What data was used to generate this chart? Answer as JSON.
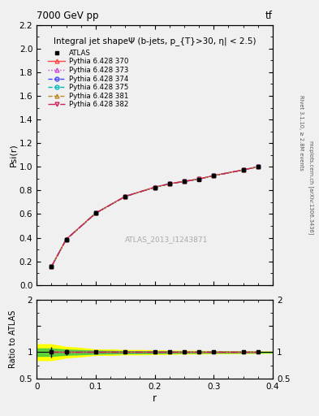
{
  "title_top": "7000 GeV pp",
  "title_top_right": "tf",
  "right_label1": "Rivet 3.1.10, ≥ 2.8M events",
  "right_label2": "mcplots.cern.ch [arXiv:1306.3436]",
  "plot_title": "Integral jet shapeΨ (b-jets, p_{T}>30, η| < 2.5)",
  "watermark": "ATLAS_2013_I1243871",
  "ylabel_main": "Psi(r)",
  "ylabel_ratio": "Ratio to ATLAS",
  "xlabel": "r",
  "xlim": [
    0.0,
    0.4
  ],
  "ylim_main": [
    0.0,
    2.2
  ],
  "ylim_ratio": [
    0.5,
    2.0
  ],
  "r_values": [
    0.025,
    0.05,
    0.1,
    0.15,
    0.2,
    0.225,
    0.25,
    0.275,
    0.3,
    0.35,
    0.375
  ],
  "atlas_data": [
    0.155,
    0.385,
    0.607,
    0.748,
    0.825,
    0.855,
    0.876,
    0.895,
    0.924,
    0.973,
    1.0
  ],
  "atlas_errors": [
    0.015,
    0.018,
    0.013,
    0.013,
    0.009,
    0.009,
    0.008,
    0.008,
    0.008,
    0.005,
    0.003
  ],
  "pythia_370": [
    0.156,
    0.387,
    0.609,
    0.75,
    0.828,
    0.857,
    0.877,
    0.897,
    0.926,
    0.974,
    1.001
  ],
  "pythia_373": [
    0.155,
    0.385,
    0.607,
    0.749,
    0.826,
    0.856,
    0.876,
    0.896,
    0.925,
    0.973,
    1.0
  ],
  "pythia_374": [
    0.155,
    0.385,
    0.607,
    0.749,
    0.826,
    0.856,
    0.876,
    0.896,
    0.925,
    0.973,
    1.0
  ],
  "pythia_375": [
    0.155,
    0.385,
    0.607,
    0.749,
    0.826,
    0.856,
    0.876,
    0.896,
    0.925,
    0.973,
    1.0
  ],
  "pythia_381": [
    0.155,
    0.385,
    0.607,
    0.749,
    0.826,
    0.856,
    0.876,
    0.896,
    0.925,
    0.973,
    1.0
  ],
  "pythia_382": [
    0.155,
    0.385,
    0.607,
    0.749,
    0.826,
    0.856,
    0.876,
    0.896,
    0.925,
    0.973,
    1.0
  ],
  "color_370": "#ff4444",
  "color_373": "#cc44cc",
  "color_374": "#4444ff",
  "color_375": "#00bbbb",
  "color_381": "#bb8822",
  "color_382": "#cc2255",
  "bg_color": "#f0f0f0",
  "ratio_yellow_r": [
    0.0,
    0.025,
    0.05,
    0.075,
    0.1,
    0.125,
    0.15,
    0.175,
    0.2,
    0.225,
    0.25,
    0.275,
    0.3,
    0.325,
    0.35,
    0.375,
    0.4
  ],
  "ratio_yellow_hi": [
    1.15,
    1.15,
    1.1,
    1.08,
    1.05,
    1.05,
    1.04,
    1.04,
    1.035,
    1.03,
    1.025,
    1.025,
    1.02,
    1.02,
    1.015,
    1.015,
    1.01
  ],
  "ratio_yellow_lo": [
    0.85,
    0.85,
    0.9,
    0.92,
    0.95,
    0.95,
    0.96,
    0.96,
    0.965,
    0.97,
    0.975,
    0.975,
    0.98,
    0.98,
    0.985,
    0.985,
    0.99
  ],
  "ratio_green_r": [
    0.0,
    0.025,
    0.05,
    0.075,
    0.1,
    0.125,
    0.15,
    0.175,
    0.2,
    0.225,
    0.25,
    0.275,
    0.3,
    0.325,
    0.35,
    0.375,
    0.4
  ],
  "ratio_green_hi": [
    1.07,
    1.07,
    1.05,
    1.04,
    1.03,
    1.025,
    1.02,
    1.02,
    1.018,
    1.015,
    1.012,
    1.012,
    1.01,
    1.01,
    1.008,
    1.008,
    1.005
  ],
  "ratio_green_lo": [
    0.93,
    0.93,
    0.95,
    0.96,
    0.97,
    0.975,
    0.98,
    0.98,
    0.982,
    0.985,
    0.988,
    0.988,
    0.99,
    0.99,
    0.992,
    0.992,
    0.995
  ],
  "legend_labels": [
    "ATLAS",
    "Pythia 6.428 370",
    "Pythia 6.428 373",
    "Pythia 6.428 374",
    "Pythia 6.428 375",
    "Pythia 6.428 381",
    "Pythia 6.428 382"
  ]
}
